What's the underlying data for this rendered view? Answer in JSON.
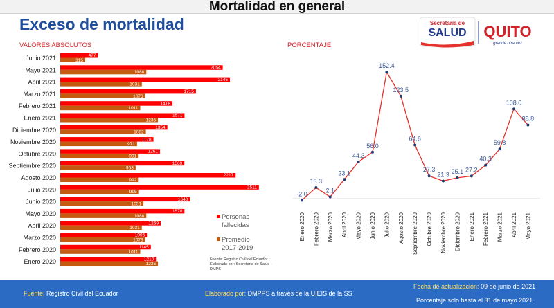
{
  "header": {
    "title": "Mortalidad en general"
  },
  "page_title": "Exceso de mortalidad",
  "logos": {
    "secretaria": "Secretaría de",
    "salud": "SALUD",
    "quito": "QUITO",
    "tagline": "grande otra vez"
  },
  "colors": {
    "fallecidas": "#ff0000",
    "promedio": "#c55a11",
    "line": "#e6302a",
    "point": "#1f3a6e",
    "label": "#3d5a99",
    "footer": "#2b6bc3"
  },
  "legend": {
    "fallecidas": "Personas fallecidas",
    "promedio": "Promedio 2017-2019"
  },
  "source_note": "Fuente: Registro Civil del Ecuador Elaborado por: Secretaría de Salud - DMPS",
  "footer": {
    "fuente_label": "Fuente:",
    "fuente_value": "Registro Civil del Ecuador",
    "elaborado_label": "Elaborado por:",
    "elaborado_value": "DMPPS a través de la UIEIS de la SS",
    "fecha_label": "Fecha de actualización:",
    "fecha_value": "09 de junio de 2021",
    "porcentaje_note": "Porcentaje solo hasta el 31 de mayo 2021"
  },
  "chart_data": [
    {
      "type": "bar",
      "subtitle": "VALORES ABSOLUTOS",
      "categories": [
        "Junio 2021",
        "Mayo 2021",
        "Abril 2021",
        "Marzo 2021",
        "Febrero 2021",
        "Enero 2021",
        "Diciembre 2020",
        "Noviembre 2020",
        "Octubre 2020",
        "Septiembre 2020",
        "Agosto 2020",
        "Julio 2020",
        "Junio 2020",
        "Mayo 2020",
        "Abril 2020",
        "Marzo 2020",
        "Febrero 2020",
        "Enero 2020"
      ],
      "series": [
        {
          "name": "Personas fallecidas",
          "values": [
            477,
            2054,
            2145,
            1715,
            1418,
            1571,
            1354,
            1178,
            1261,
            1569,
            2217,
            2511,
            1640,
            1570,
            1269,
            1096,
            1145,
            1210
          ]
        },
        {
          "name": "Promedio 2017-2019",
          "values": [
            315,
            1088,
            1031,
            1073,
            1011,
            1235,
            1082,
            971,
            991,
            953,
            992,
            995,
            1051,
            1088,
            1031,
            1073,
            1011,
            1235
          ]
        }
      ],
      "xlim": [
        0,
        2600
      ]
    },
    {
      "type": "line",
      "subtitle": "PORCENTAJE",
      "categories": [
        "Enero 2020",
        "Febrero 2020",
        "Marzo 2020",
        "Abril 2020",
        "Mayo 2020",
        "Junio 2020",
        "Julio 2020",
        "Agosto 2020",
        "Septiembre 2020",
        "Octubre 2020",
        "Noviembre 2020",
        "Diciembre 2020",
        "Enero 2021",
        "Febrero 2021",
        "Marzo 2021",
        "Abril 2021",
        "Mayo 2021"
      ],
      "values": [
        -2.0,
        13.3,
        2.1,
        23.1,
        44.3,
        56.0,
        152.4,
        123.5,
        64.6,
        27.3,
        21.3,
        25.1,
        27.2,
        40.3,
        59.8,
        108.0,
        88.8
      ],
      "labels": [
        "-2.0",
        "13.3",
        "2.1",
        "23.1",
        "44.3",
        "56.0",
        "152.4",
        "123.5",
        "64.6",
        "27.3",
        "21.3",
        "25.1",
        "27.2",
        "40.3",
        "59.8",
        "108.0",
        "88.8"
      ],
      "ylim": [
        -5,
        160
      ]
    }
  ]
}
